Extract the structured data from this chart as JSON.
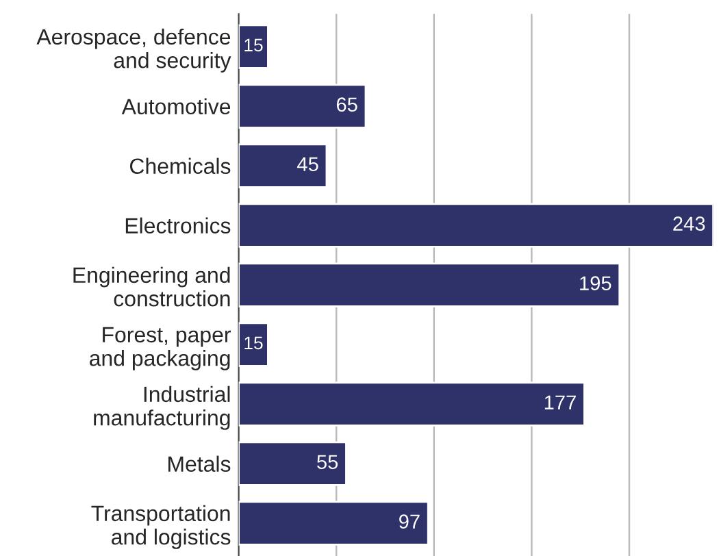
{
  "chart_data": {
    "type": "bar",
    "orientation": "horizontal",
    "categories": [
      "Aerospace, defence\nand security",
      "Automotive",
      "Chemicals",
      "Electronics",
      "Engineering and\nconstruction",
      "Forest, paper\nand packaging",
      "Industrial\nmanufacturing",
      "Metals",
      "Transportation\nand logistics"
    ],
    "values": [
      15,
      65,
      45,
      243,
      195,
      15,
      177,
      55,
      97
    ],
    "color": "#2e3268",
    "data_labels": true,
    "xlim": [
      0,
      243
    ],
    "xticks": [
      {
        "value": 50,
        "label": null
      },
      {
        "value": 100,
        "label": null
      },
      {
        "value": 150,
        "label": null
      },
      {
        "value": 200,
        "label": null
      }
    ],
    "grid": "x"
  }
}
